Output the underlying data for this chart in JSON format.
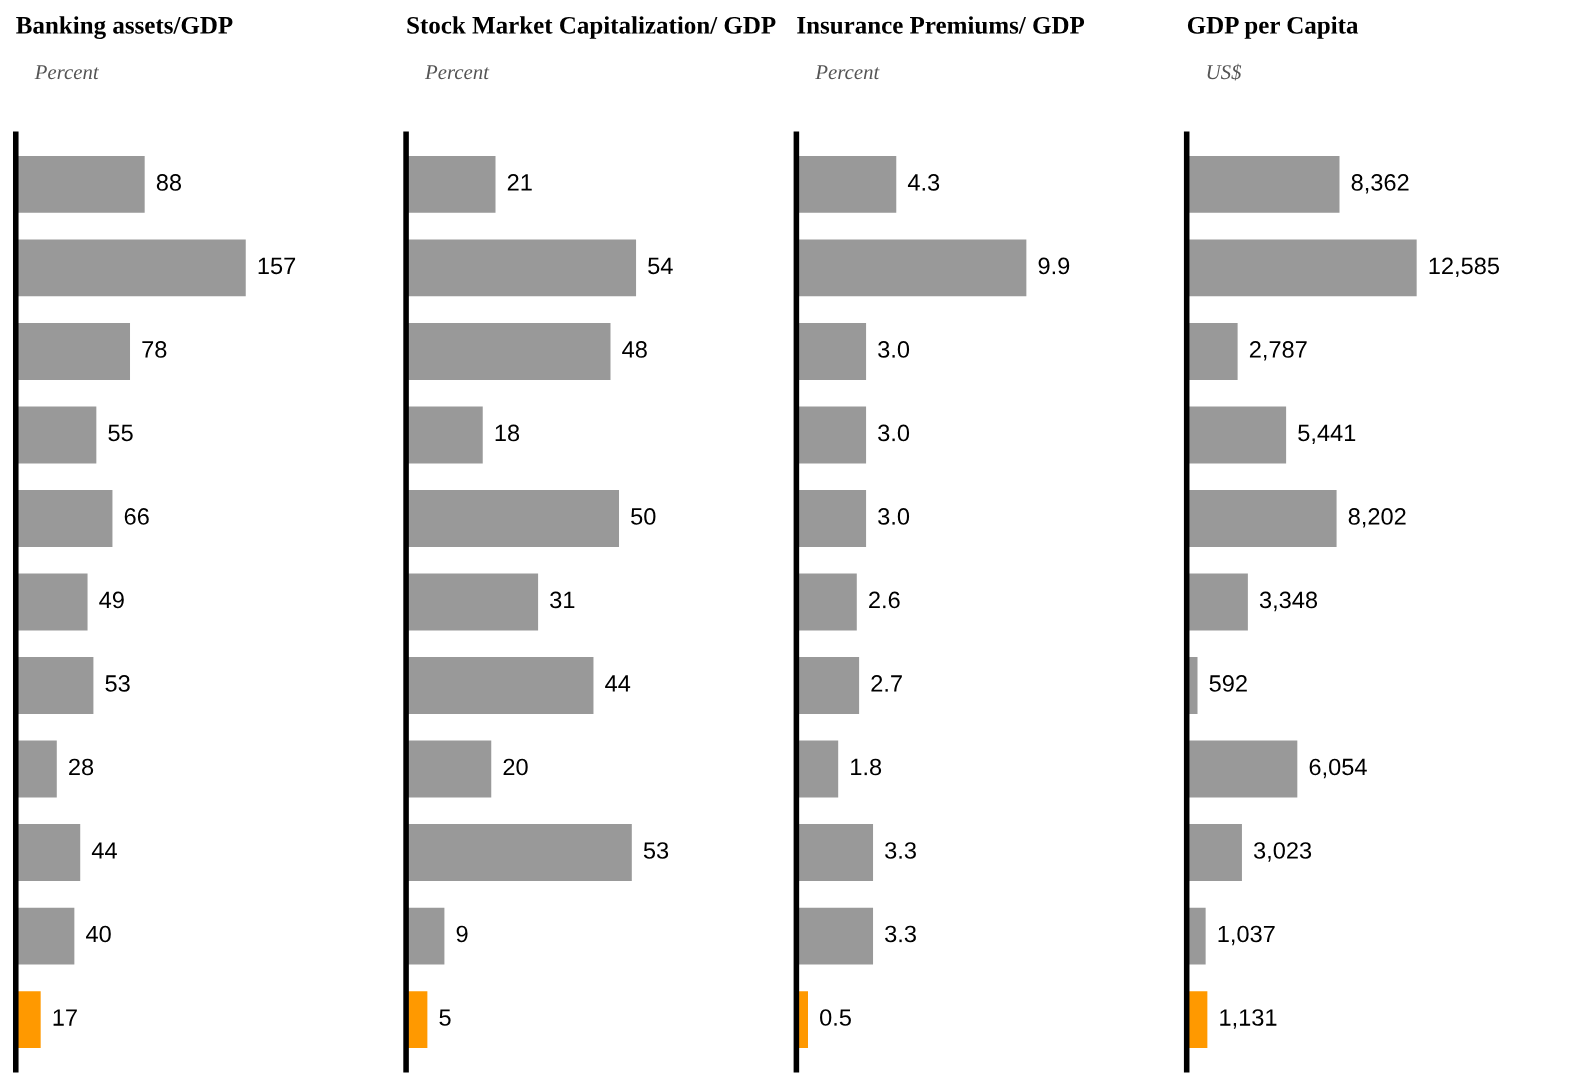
{
  "chart_data": [
    {
      "type": "bar",
      "orientation": "horizontal",
      "title": "Banking assets/GDP",
      "subtitle": "Percent",
      "categories": [
        null,
        null,
        null,
        null,
        null,
        null,
        null,
        null,
        null,
        null,
        null
      ],
      "values": [
        88,
        157,
        78,
        55,
        66,
        49,
        53,
        28,
        44,
        40,
        17
      ],
      "colors": [
        "#999999",
        "#999999",
        "#999999",
        "#999999",
        "#999999",
        "#999999",
        "#999999",
        "#999999",
        "#999999",
        "#999999",
        "#ff9900"
      ],
      "value_labels": [
        "88",
        "157",
        "78",
        "55",
        "66",
        "49",
        "53",
        "28",
        "44",
        "40",
        "17"
      ]
    },
    {
      "type": "bar",
      "orientation": "horizontal",
      "title": "Stock Market Capitalization/ GDP",
      "subtitle": "Percent",
      "categories": [
        null,
        null,
        null,
        null,
        null,
        null,
        null,
        null,
        null,
        null,
        null
      ],
      "values": [
        21,
        54,
        48,
        18,
        50,
        31,
        44,
        20,
        53,
        9,
        5
      ],
      "colors": [
        "#999999",
        "#999999",
        "#999999",
        "#999999",
        "#999999",
        "#999999",
        "#999999",
        "#999999",
        "#999999",
        "#999999",
        "#ff9900"
      ],
      "value_labels": [
        "21",
        "54",
        "48",
        "18",
        "50",
        "31",
        "44",
        "20",
        "53",
        "9",
        "5"
      ]
    },
    {
      "type": "bar",
      "orientation": "horizontal",
      "title": "Insurance Premiums/ GDP",
      "subtitle": "Percent",
      "categories": [
        null,
        null,
        null,
        null,
        null,
        null,
        null,
        null,
        null,
        null,
        null
      ],
      "values": [
        4.3,
        9.9,
        3.0,
        3.0,
        3.0,
        2.6,
        2.7,
        1.8,
        3.3,
        3.3,
        0.5
      ],
      "colors": [
        "#999999",
        "#999999",
        "#999999",
        "#999999",
        "#999999",
        "#999999",
        "#999999",
        "#999999",
        "#999999",
        "#999999",
        "#ff9900"
      ],
      "value_labels": [
        "4.3",
        "9.9",
        "3.0",
        "3.0",
        "3.0",
        "2.6",
        "2.7",
        "1.8",
        "3.3",
        "3.3",
        "0.5"
      ]
    },
    {
      "type": "bar",
      "orientation": "horizontal",
      "title": "GDP per Capita",
      "subtitle": "US$",
      "categories": [
        null,
        null,
        null,
        null,
        null,
        null,
        null,
        null,
        null,
        null,
        null
      ],
      "values": [
        8362,
        12585,
        2787,
        5441,
        8202,
        3348,
        592,
        6054,
        3023,
        1037,
        1131
      ],
      "colors": [
        "#999999",
        "#999999",
        "#999999",
        "#999999",
        "#999999",
        "#999999",
        "#999999",
        "#999999",
        "#999999",
        "#999999",
        "#ff9900"
      ],
      "value_labels": [
        "8,362",
        "12,585",
        "2,787",
        "5,441",
        "8,202",
        "3,348",
        "592",
        "6,054",
        "3,023",
        "1,037",
        "1,131"
      ]
    }
  ]
}
